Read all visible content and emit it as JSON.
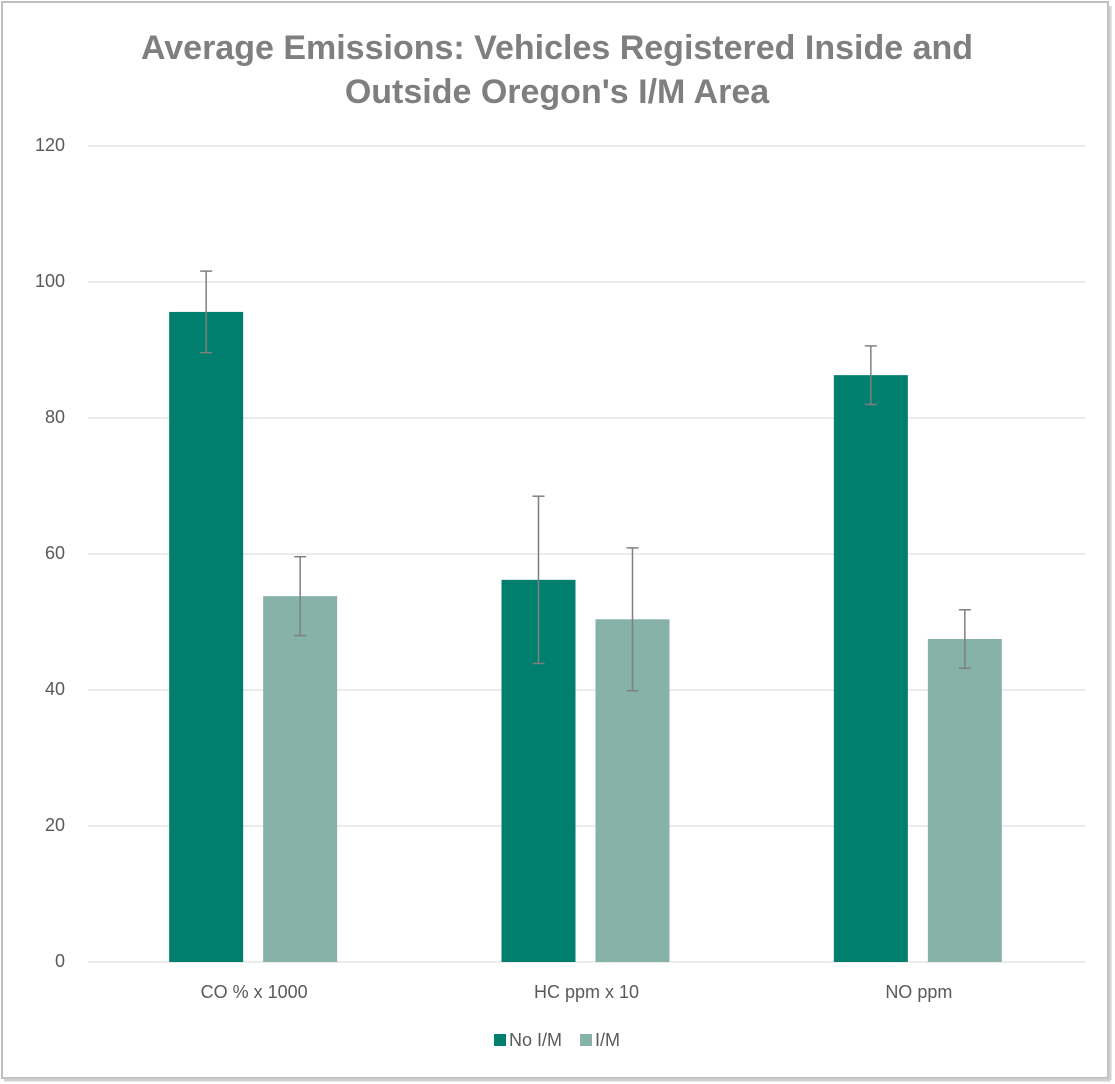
{
  "chart_data": {
    "type": "bar",
    "title": "Average Emissions: Vehicles Registered Inside and Outside Oregon's I/M Area",
    "categories": [
      "CO % x 1000",
      "HC ppm x 10",
      "NO ppm"
    ],
    "series": [
      {
        "name": "No I/M",
        "color": "#007e6e",
        "values": [
          95.6,
          56.2,
          86.3
        ],
        "errors": [
          6.0,
          12.3,
          4.3
        ]
      },
      {
        "name": "I/M",
        "color": "#86b2a8",
        "values": [
          53.8,
          50.4,
          47.5
        ],
        "errors": [
          5.8,
          10.5,
          4.3
        ]
      }
    ],
    "ylim": [
      0,
      120
    ],
    "yticks": [
      0,
      20,
      40,
      60,
      80,
      100,
      120
    ],
    "grid": true,
    "legend": "bottom"
  }
}
